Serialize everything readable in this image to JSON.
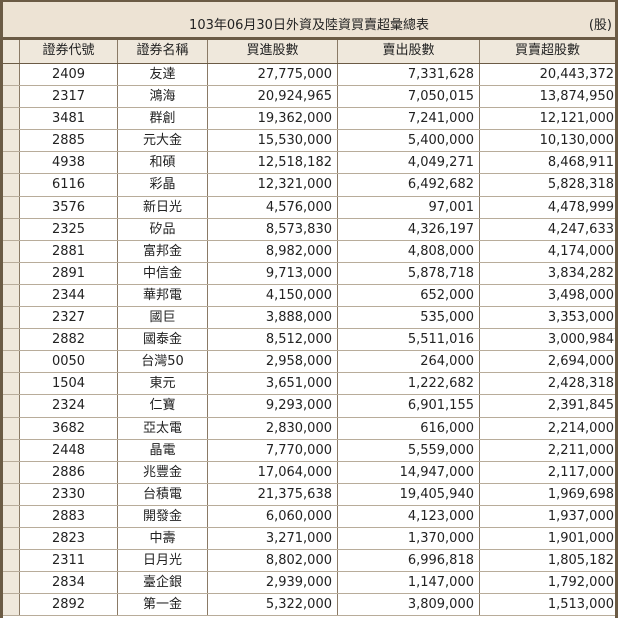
{
  "title": "103年06月30日外資及陸資買賣超彙總表",
  "unit": "(股)",
  "headers": [
    "證券代號",
    "證券名稱",
    "買進股數",
    "賣出股數",
    "買賣超股數"
  ],
  "rows": [
    [
      "2409",
      "友達",
      "27,775,000",
      "7,331,628",
      "20,443,372"
    ],
    [
      "2317",
      "鴻海",
      "20,924,965",
      "7,050,015",
      "13,874,950"
    ],
    [
      "3481",
      "群創",
      "19,362,000",
      "7,241,000",
      "12,121,000"
    ],
    [
      "2885",
      "元大金",
      "15,530,000",
      "5,400,000",
      "10,130,000"
    ],
    [
      "4938",
      "和碩",
      "12,518,182",
      "4,049,271",
      "8,468,911"
    ],
    [
      "6116",
      "彩晶",
      "12,321,000",
      "6,492,682",
      "5,828,318"
    ],
    [
      "3576",
      "新日光",
      "4,576,000",
      "97,001",
      "4,478,999"
    ],
    [
      "2325",
      "矽品",
      "8,573,830",
      "4,326,197",
      "4,247,633"
    ],
    [
      "2881",
      "富邦金",
      "8,982,000",
      "4,808,000",
      "4,174,000"
    ],
    [
      "2891",
      "中信金",
      "9,713,000",
      "5,878,718",
      "3,834,282"
    ],
    [
      "2344",
      "華邦電",
      "4,150,000",
      "652,000",
      "3,498,000"
    ],
    [
      "2327",
      "國巨",
      "3,888,000",
      "535,000",
      "3,353,000"
    ],
    [
      "2882",
      "國泰金",
      "8,512,000",
      "5,511,016",
      "3,000,984"
    ],
    [
      "0050",
      "台灣50",
      "2,958,000",
      "264,000",
      "2,694,000"
    ],
    [
      "1504",
      "東元",
      "3,651,000",
      "1,222,682",
      "2,428,318"
    ],
    [
      "2324",
      "仁寶",
      "9,293,000",
      "6,901,155",
      "2,391,845"
    ],
    [
      "3682",
      "亞太電",
      "2,830,000",
      "616,000",
      "2,214,000"
    ],
    [
      "2448",
      "晶電",
      "7,770,000",
      "5,559,000",
      "2,211,000"
    ],
    [
      "2886",
      "兆豐金",
      "17,064,000",
      "14,947,000",
      "2,117,000"
    ],
    [
      "2330",
      "台積電",
      "21,375,638",
      "19,405,940",
      "1,969,698"
    ],
    [
      "2883",
      "開發金",
      "6,060,000",
      "4,123,000",
      "1,937,000"
    ],
    [
      "2823",
      "中壽",
      "3,271,000",
      "1,370,000",
      "1,901,000"
    ],
    [
      "2311",
      "日月光",
      "8,802,000",
      "6,996,818",
      "1,805,182"
    ],
    [
      "2834",
      "臺企銀",
      "2,939,000",
      "1,147,000",
      "1,792,000"
    ],
    [
      "2892",
      "第一金",
      "5,322,000",
      "3,809,000",
      "1,513,000"
    ]
  ]
}
